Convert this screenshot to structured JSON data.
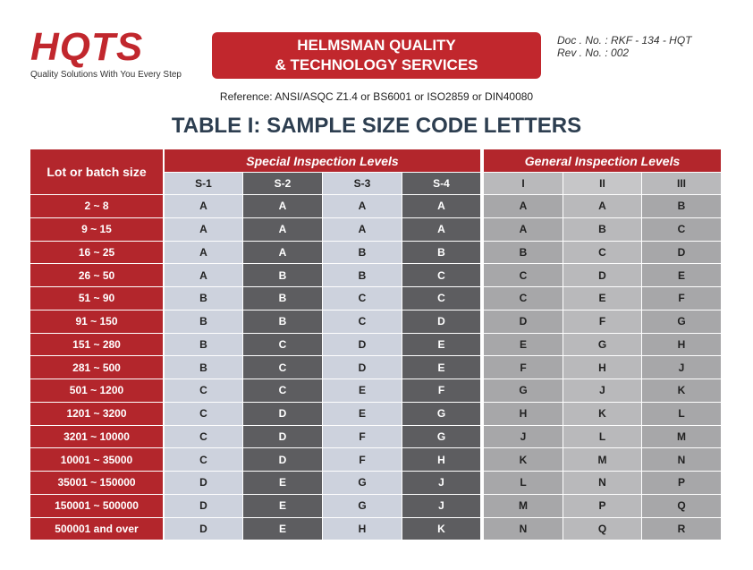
{
  "header": {
    "logo": "HQTS",
    "tagline": "Quality Solutions With You Every Step",
    "company_line1": "HELMSMAN QUALITY",
    "company_line2": "& TECHNOLOGY SERVICES",
    "doc_no": "Doc . No. : RKF - 134 - HQT",
    "rev_no": "Rev . No. : 002"
  },
  "reference": "Reference: ANSI/ASQC Z1.4 or BS6001 or ISO2859 or DIN40080",
  "title": "TABLE I: SAMPLE SIZE CODE LETTERS",
  "table": {
    "lot_header": "Lot or batch size",
    "groups": [
      "Special Inspection Levels",
      "General Inspection Levels"
    ],
    "columns": [
      "S-1",
      "S-2",
      "S-3",
      "S-4",
      "I",
      "II",
      "III"
    ],
    "rows": [
      [
        "2 ~ 8",
        "A",
        "A",
        "A",
        "A",
        "A",
        "A",
        "B"
      ],
      [
        "9 ~ 15",
        "A",
        "A",
        "A",
        "A",
        "A",
        "B",
        "C"
      ],
      [
        "16 ~ 25",
        "A",
        "A",
        "B",
        "B",
        "B",
        "C",
        "D"
      ],
      [
        "26 ~ 50",
        "A",
        "B",
        "B",
        "C",
        "C",
        "D",
        "E"
      ],
      [
        "51 ~ 90",
        "B",
        "B",
        "C",
        "C",
        "C",
        "E",
        "F"
      ],
      [
        "91 ~ 150",
        "B",
        "B",
        "C",
        "D",
        "D",
        "F",
        "G"
      ],
      [
        "151 ~ 280",
        "B",
        "C",
        "D",
        "E",
        "E",
        "G",
        "H"
      ],
      [
        "281 ~ 500",
        "B",
        "C",
        "D",
        "E",
        "F",
        "H",
        "J"
      ],
      [
        "501 ~ 1200",
        "C",
        "C",
        "E",
        "F",
        "G",
        "J",
        "K"
      ],
      [
        "1201 ~ 3200",
        "C",
        "D",
        "E",
        "G",
        "H",
        "K",
        "L"
      ],
      [
        "3201 ~ 10000",
        "C",
        "D",
        "F",
        "G",
        "J",
        "L",
        "M"
      ],
      [
        "10001 ~ 35000",
        "C",
        "D",
        "F",
        "H",
        "K",
        "M",
        "N"
      ],
      [
        "35001 ~ 150000",
        "D",
        "E",
        "G",
        "J",
        "L",
        "N",
        "P"
      ],
      [
        "150001 ~ 500000",
        "D",
        "E",
        "G",
        "J",
        "M",
        "P",
        "Q"
      ],
      [
        "500001 and over",
        "D",
        "E",
        "H",
        "K",
        "N",
        "Q",
        "R"
      ]
    ]
  }
}
